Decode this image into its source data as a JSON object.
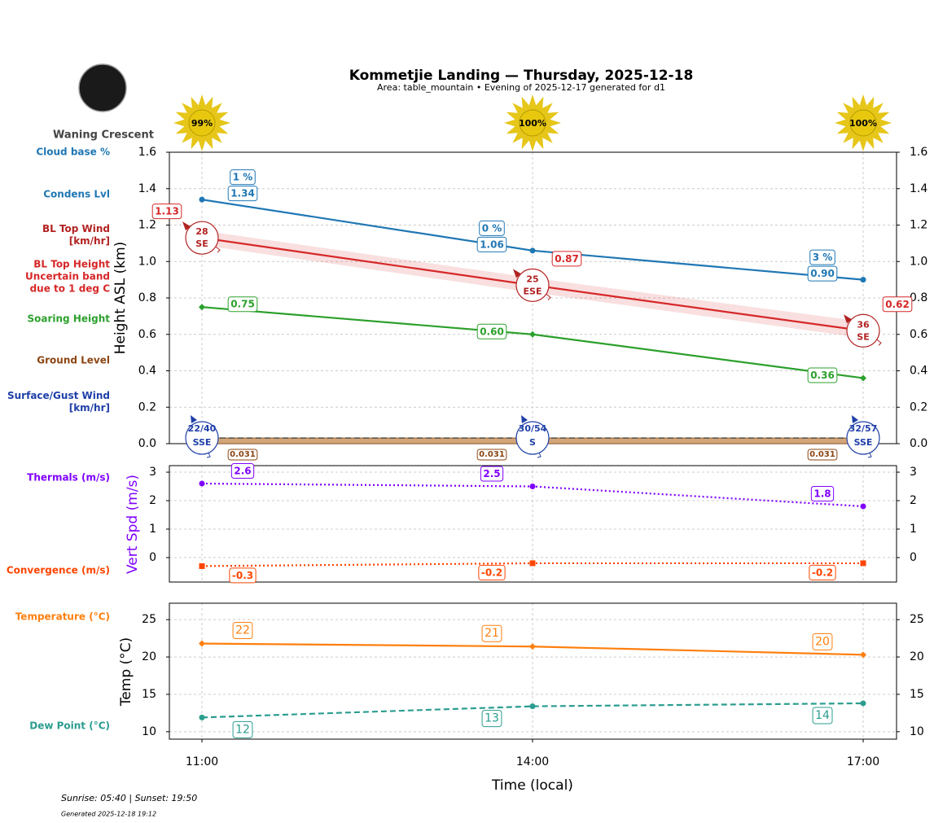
{
  "header": {
    "title": "Kommetjie Landing — Thursday, 2025-12-18",
    "subtitle": "Area: table_mountain • Evening of 2025-12-17 generated for d1",
    "moon_phase": "Waning Crescent",
    "sun": {
      "values": [
        99,
        100,
        100
      ],
      "value_labels": [
        "99%",
        "100%",
        "100%"
      ]
    }
  },
  "footer": {
    "sun_times": "Sunrise: 05:40 | Sunset: 19:50",
    "generated": "Generated 2025-12-18 19:12"
  },
  "chart_data": [
    {
      "type": "line",
      "ylabel": "Height ASL (km)",
      "ylim": [
        0,
        1.6
      ],
      "yticks": [
        {
          "value": 0,
          "label": "0.0"
        },
        0.2,
        0.4,
        0.6,
        0.8,
        {
          "value": 1,
          "label": "1.0"
        },
        1.2,
        1.4,
        1.6
      ],
      "grid": true,
      "cloud_base": {
        "name": "Cloud base %",
        "color": "#1f77b4",
        "values": [
          1,
          0,
          3
        ],
        "value_labels": [
          "1 %",
          "0 %",
          "3 %"
        ]
      },
      "series": [
        {
          "name": "Condens Lvl",
          "color": "#1f77b4",
          "dash": "solid",
          "marker": "circle",
          "values": [
            1.34,
            1.06,
            0.9
          ],
          "value_labels": [
            "1.34",
            "1.06",
            "0.90"
          ]
        },
        {
          "name": "BL Top Height Uncertain band due to 1 deg C",
          "color": "#d62728",
          "dash": "solid",
          "marker": "none",
          "values": [
            1.13,
            0.87,
            0.62
          ],
          "band_low": [
            1.09,
            0.83,
            0.58
          ],
          "band_high": [
            1.17,
            0.91,
            0.67
          ],
          "wind_name": "BL Top Wind [km/hr]",
          "wind_color": "#b22222",
          "wind_speed": [
            28,
            25,
            36
          ],
          "wind_direction": [
            "SE",
            "ESE",
            "SE"
          ]
        },
        {
          "name": "Soaring Height",
          "color": "#2ca02c",
          "dash": "solid",
          "marker": "diamond",
          "values": [
            0.75,
            0.6,
            0.36
          ],
          "value_labels": [
            "0.75",
            "0.60",
            "0.36"
          ]
        },
        {
          "name": "Ground Level",
          "color": "#8b4513",
          "fill": "#d2a679",
          "dash": "dashed",
          "marker": "none",
          "values": [
            0.031,
            0.031,
            0.031
          ]
        }
      ],
      "surface_wind": {
        "name": "Surface/Gust Wind [km/hr]",
        "color": "#1f3fa8",
        "speed": [
          22,
          30,
          32
        ],
        "gust": [
          40,
          54,
          57
        ],
        "value_labels": [
          "22/40",
          "30/54",
          "32/57"
        ],
        "direction": [
          "SSE",
          "S",
          "SSE"
        ]
      }
    },
    {
      "type": "line",
      "ylabel": "Vert Spd (m/s)",
      "ylabel_color": "#7f00ff",
      "ylim": [
        -0.86,
        3.23
      ],
      "yticks": [
        0,
        1,
        2,
        3
      ],
      "grid": true,
      "series": [
        {
          "name": "Thermals (m/s)",
          "color": "#7f00ff",
          "dash": "dotted",
          "marker": "circle",
          "values": [
            2.6,
            2.5,
            1.8
          ]
        },
        {
          "name": "Convergence (m/s)",
          "color": "#ff4500",
          "dash": "dotted",
          "marker": "square",
          "values": [
            -0.3,
            -0.2,
            -0.2
          ]
        }
      ]
    },
    {
      "type": "line",
      "ylabel": "Temp (°C)",
      "xlabel": "Time (local)",
      "categories": [
        "11:00",
        "14:00",
        "17:00"
      ],
      "ylim": [
        9.0,
        27.2
      ],
      "yticks": [
        10,
        15,
        20,
        25
      ],
      "grid": true,
      "series": [
        {
          "name": "Temperature (°C)",
          "color": "#ff7f0e",
          "dash": "solid",
          "marker": "diamond",
          "values": [
            21.8,
            21.4,
            20.3
          ],
          "value_labels": [
            "22",
            "21",
            "20"
          ]
        },
        {
          "name": "Dew Point (°C)",
          "color": "#2a9d8f",
          "dash": "dashed",
          "marker": "circle",
          "values": [
            11.9,
            13.4,
            13.8
          ],
          "value_labels": [
            "12",
            "13",
            "14"
          ]
        }
      ]
    }
  ]
}
